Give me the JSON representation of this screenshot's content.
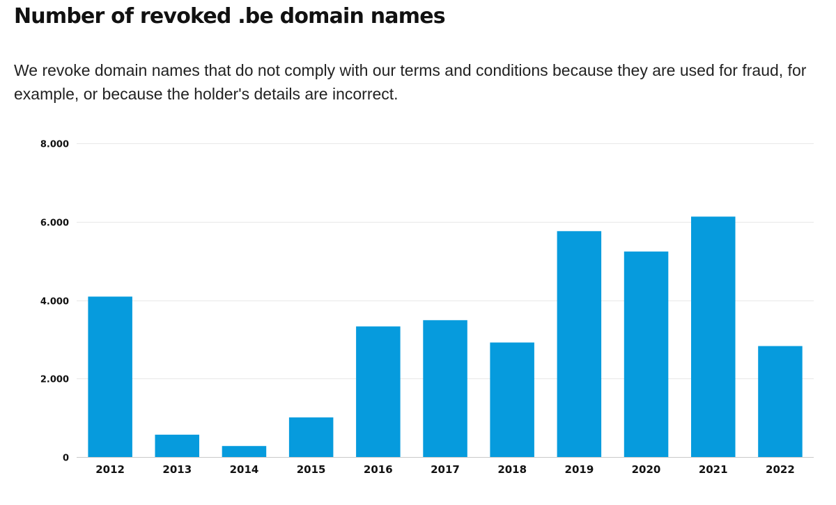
{
  "page": {
    "title": "Number of revoked .be domain names",
    "description": "We revoke domain names that do not comply with our terms and conditions because they are used for fraud, for example, or because the holder's details are incorrect."
  },
  "colors": {
    "bar": "#069bdd",
    "grid": "#e8e8e8",
    "axis": "#c8c8c8"
  },
  "chart_data": {
    "type": "bar",
    "categories": [
      "2012",
      "2013",
      "2014",
      "2015",
      "2016",
      "2017",
      "2018",
      "2019",
      "2020",
      "2021",
      "2022"
    ],
    "values": [
      4090,
      570,
      280,
      1010,
      3330,
      3490,
      2920,
      5760,
      5240,
      6130,
      2830
    ],
    "y_ticks": [
      0,
      2000,
      4000,
      6000,
      8000
    ],
    "y_tick_labels": [
      "0",
      "2.000",
      "4.000",
      "6.000",
      "8.000"
    ],
    "ylim": [
      0,
      8000
    ],
    "grid": true,
    "legend": "none"
  }
}
